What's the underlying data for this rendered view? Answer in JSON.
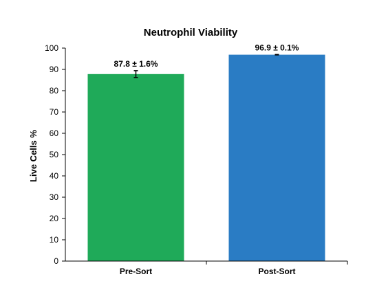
{
  "chart_data": {
    "type": "bar",
    "title": "Neutrophil Viability",
    "xlabel": "",
    "ylabel": "Live Cells %",
    "ylim": [
      0,
      100
    ],
    "yticks": [
      0,
      10,
      20,
      30,
      40,
      50,
      60,
      70,
      80,
      90,
      100
    ],
    "grid": false,
    "categories": [
      "Pre-Sort",
      "Post-Sort"
    ],
    "values": [
      87.8,
      96.9
    ],
    "errors": [
      1.6,
      0.1
    ],
    "data_labels": [
      "87.8 ± 1.6%",
      "96.9 ± 0.1%"
    ],
    "colors": [
      "#1faa59",
      "#2a7cc4"
    ]
  }
}
